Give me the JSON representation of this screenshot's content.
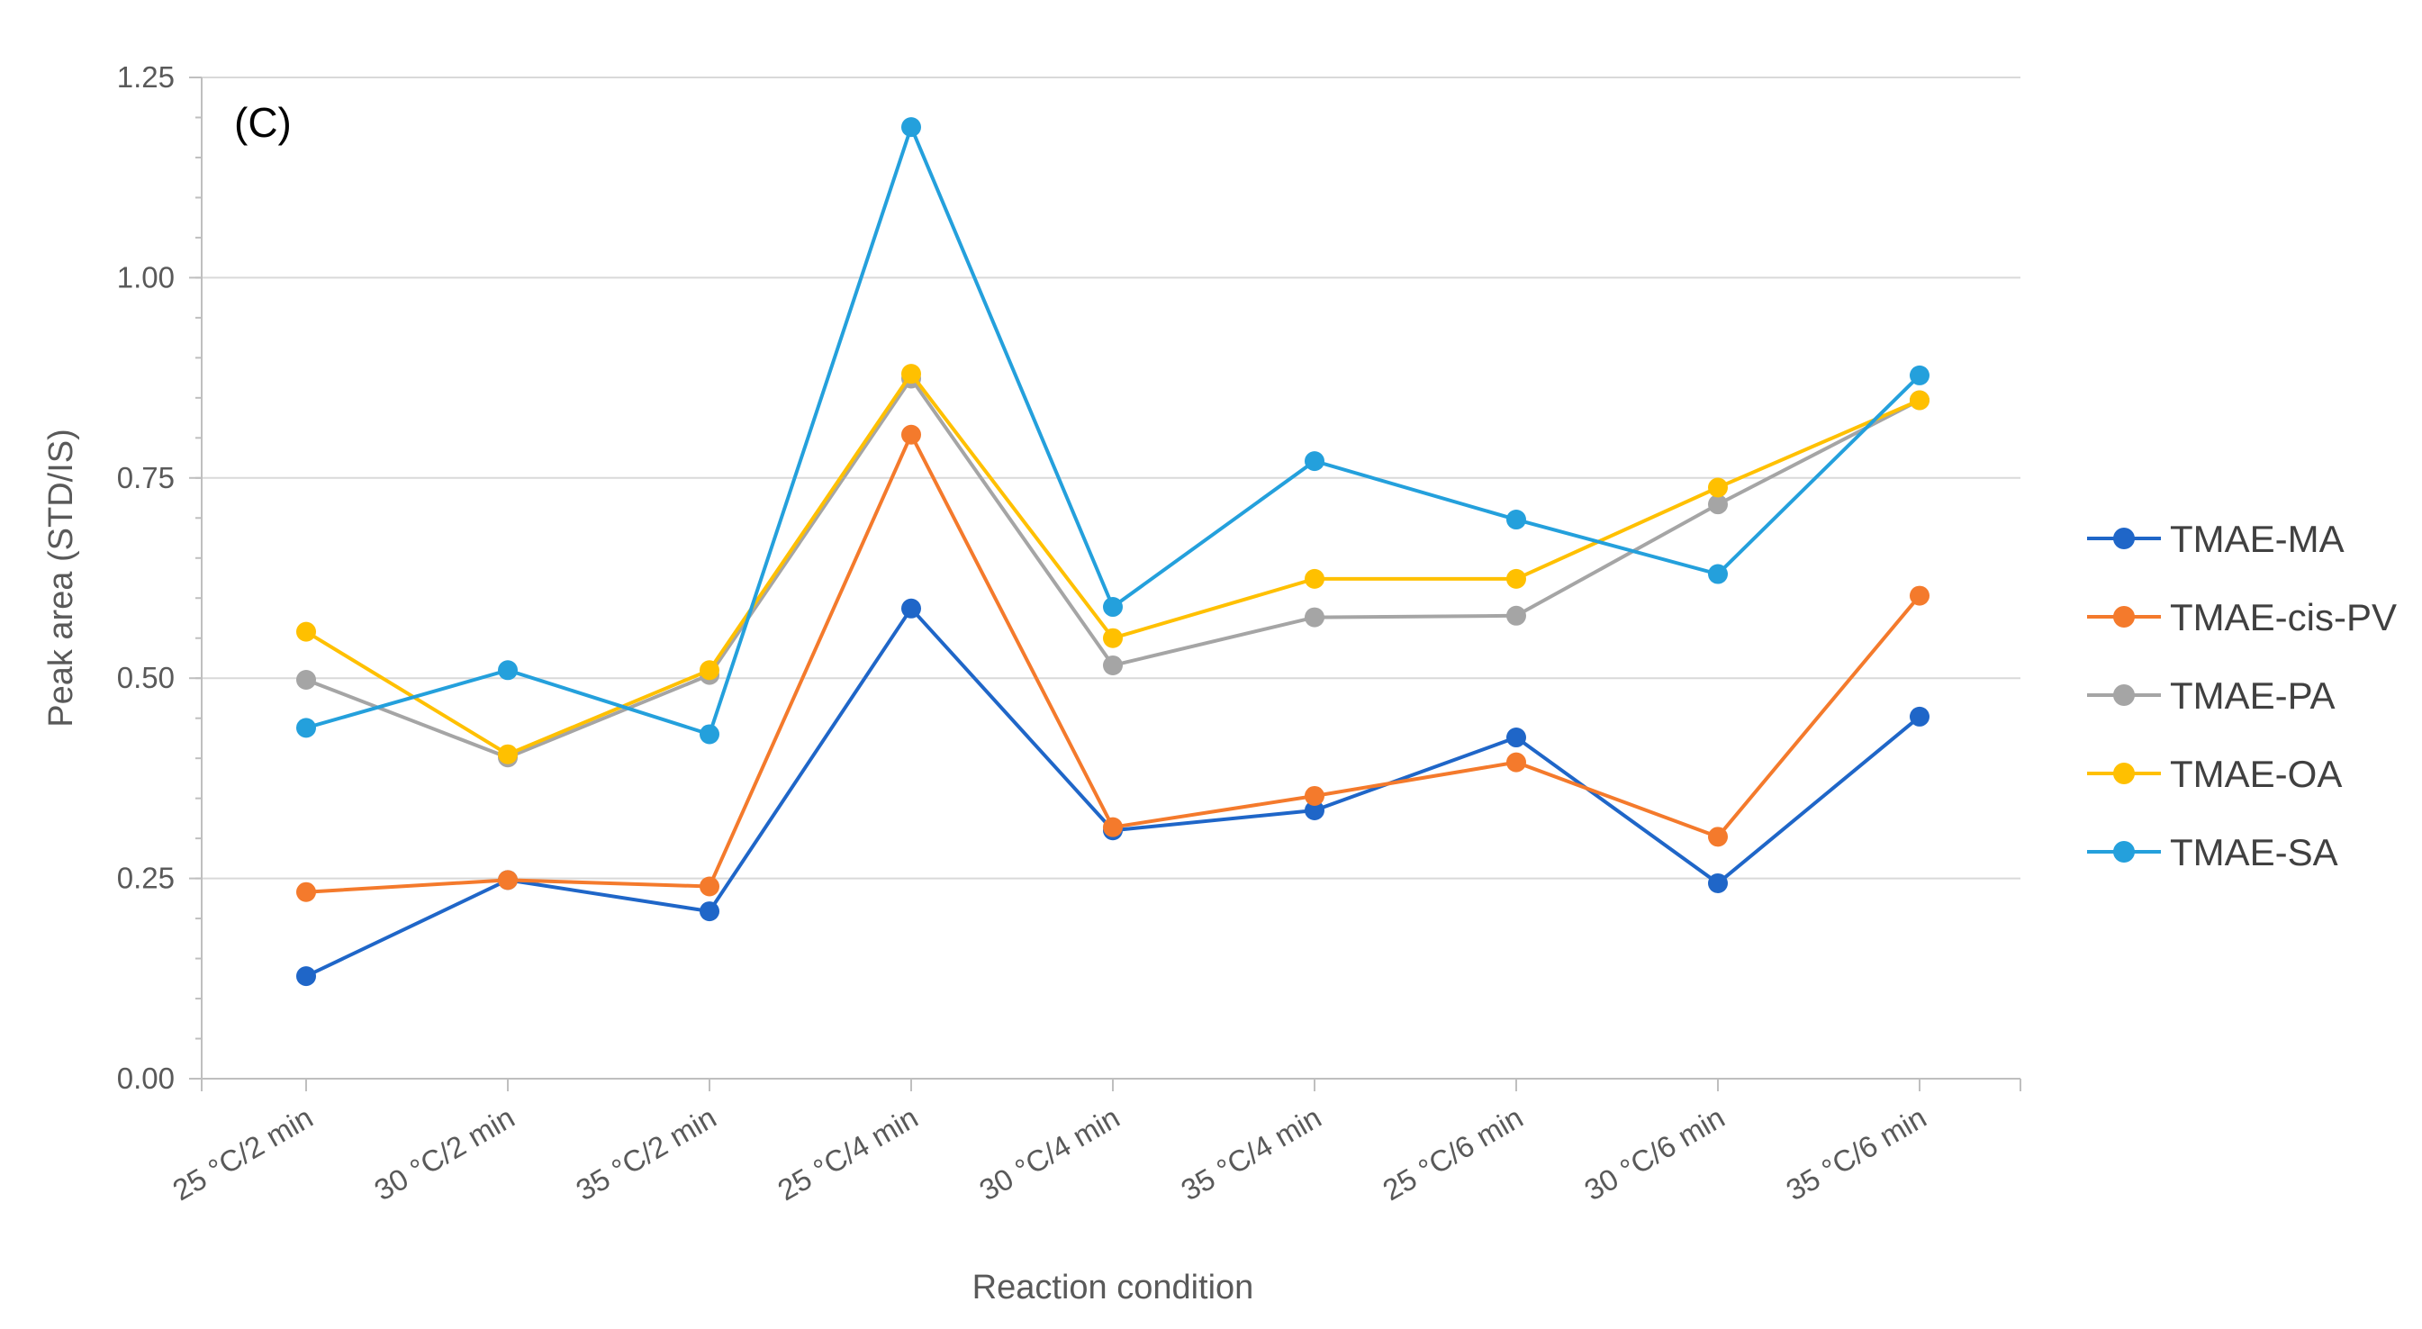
{
  "chart_data": {
    "type": "line",
    "panel_label": "(C)",
    "xlabel": "Reaction condition",
    "ylabel": "Peak area (STD/IS)",
    "ylim": [
      0,
      1.25
    ],
    "yticks": [
      "0.00",
      "0.25",
      "0.50",
      "0.75",
      "1.00",
      "1.25"
    ],
    "ytick_values": [
      0,
      0.25,
      0.5,
      0.75,
      1.0,
      1.25
    ],
    "grid": true,
    "legend_position": "right",
    "categories": [
      "25 °C/2 min",
      "30 °C/2 min",
      "35 °C/2 min",
      "25 °C/4 min",
      "30 °C/4 min",
      "35 °C/4 min",
      "25 °C/6 min",
      "30 °C/6 min",
      "35 °C/6 min"
    ],
    "series": [
      {
        "name": "TMAE-MA",
        "color": "#1f66c8",
        "values": [
          0.128,
          0.248,
          0.209,
          0.587,
          0.31,
          0.335,
          0.426,
          0.244,
          0.452
        ]
      },
      {
        "name": "TMAE-cis-PV",
        "color": "#f47a2c",
        "values": [
          0.233,
          0.248,
          0.24,
          0.804,
          0.314,
          0.353,
          0.395,
          0.302,
          0.603
        ]
      },
      {
        "name": "TMAE-PA",
        "color": "#a5a5a5",
        "values": [
          0.498,
          0.401,
          0.504,
          0.874,
          0.516,
          0.576,
          0.578,
          0.717,
          0.847
        ]
      },
      {
        "name": "TMAE-OA",
        "color": "#ffc000",
        "values": [
          0.558,
          0.405,
          0.51,
          0.88,
          0.55,
          0.624,
          0.624,
          0.738,
          0.847
        ]
      },
      {
        "name": "TMAE-SA",
        "color": "#24a0dc",
        "values": [
          0.438,
          0.51,
          0.43,
          1.188,
          0.589,
          0.771,
          0.698,
          0.63,
          0.878
        ]
      }
    ]
  }
}
